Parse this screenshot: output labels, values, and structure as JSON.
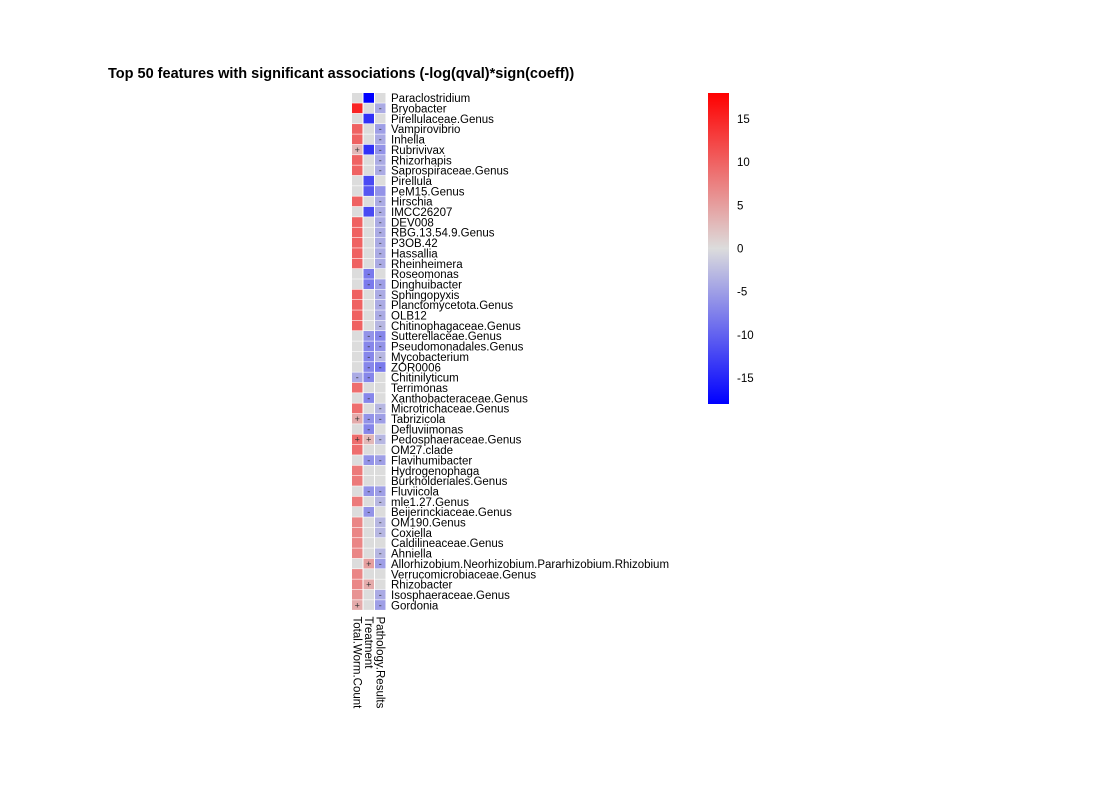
{
  "chart_data": {
    "type": "heatmap",
    "title": "Top 50 features with significant associations (-log(qval)*sign(coeff))",
    "columns": [
      "Total.Worm.Count",
      "Treatment",
      "Pathology.Results"
    ],
    "rows": [
      {
        "feature": "Paraclostridium",
        "values": [
          null,
          -18,
          null
        ],
        "signs": [
          "",
          "",
          ""
        ]
      },
      {
        "feature": "Bryobacter",
        "values": [
          15,
          null,
          -4
        ],
        "signs": [
          "",
          "",
          "-"
        ]
      },
      {
        "feature": "Pirellulaceae.Genus",
        "values": [
          null,
          -14,
          null
        ],
        "signs": [
          "",
          "",
          ""
        ]
      },
      {
        "feature": "Vampirovibrio",
        "values": [
          10,
          null,
          -5
        ],
        "signs": [
          "",
          "",
          "-"
        ]
      },
      {
        "feature": "Inhella",
        "values": [
          10,
          null,
          -4
        ],
        "signs": [
          "",
          "",
          "-"
        ]
      },
      {
        "feature": "Rubrivivax",
        "values": [
          3,
          -14,
          -6
        ],
        "signs": [
          "+",
          "",
          "-"
        ]
      },
      {
        "feature": "Rhizorhapis",
        "values": [
          10,
          null,
          -4
        ],
        "signs": [
          "",
          "",
          "-"
        ]
      },
      {
        "feature": "Saprospiraceae.Genus",
        "values": [
          10,
          null,
          -4
        ],
        "signs": [
          "",
          "",
          "-"
        ]
      },
      {
        "feature": "Pirellula",
        "values": [
          null,
          -12,
          null
        ],
        "signs": [
          "",
          "",
          ""
        ]
      },
      {
        "feature": "PeM15.Genus",
        "values": [
          null,
          -11,
          -6
        ],
        "signs": [
          "",
          "",
          ""
        ]
      },
      {
        "feature": "Hirschia",
        "values": [
          10,
          null,
          -4
        ],
        "signs": [
          "",
          "",
          "-"
        ]
      },
      {
        "feature": "IMCC26207",
        "values": [
          null,
          -12,
          -4
        ],
        "signs": [
          "",
          "",
          "-"
        ]
      },
      {
        "feature": "DEV008",
        "values": [
          10,
          null,
          -4
        ],
        "signs": [
          "",
          "",
          "-"
        ]
      },
      {
        "feature": "RBG.13.54.9.Genus",
        "values": [
          10,
          null,
          -4
        ],
        "signs": [
          "",
          "",
          "-"
        ]
      },
      {
        "feature": "P3OB.42",
        "values": [
          10,
          null,
          -4
        ],
        "signs": [
          "",
          "",
          "-"
        ]
      },
      {
        "feature": "Hassallia",
        "values": [
          10,
          null,
          -4
        ],
        "signs": [
          "",
          "",
          "-"
        ]
      },
      {
        "feature": "Rheinheimera",
        "values": [
          10,
          null,
          -4
        ],
        "signs": [
          "",
          "",
          "-"
        ]
      },
      {
        "feature": "Roseomonas",
        "values": [
          null,
          -8,
          null
        ],
        "signs": [
          "",
          "-",
          ""
        ]
      },
      {
        "feature": "Dinghuibacter",
        "values": [
          null,
          -8,
          -5
        ],
        "signs": [
          "",
          "-",
          "-"
        ]
      },
      {
        "feature": "Sphingopyxis",
        "values": [
          10,
          null,
          -4
        ],
        "signs": [
          "",
          "",
          "-"
        ]
      },
      {
        "feature": "Planctomycetota.Genus",
        "values": [
          10,
          null,
          -4
        ],
        "signs": [
          "",
          "",
          "-"
        ]
      },
      {
        "feature": "OLB12",
        "values": [
          10,
          null,
          -4
        ],
        "signs": [
          "",
          "",
          "-"
        ]
      },
      {
        "feature": "Chitinophagaceae.Genus",
        "values": [
          10,
          null,
          -3
        ],
        "signs": [
          "",
          "",
          "-"
        ]
      },
      {
        "feature": "Sutterellaceae.Genus",
        "values": [
          null,
          -6,
          -7
        ],
        "signs": [
          "",
          "-",
          "-"
        ]
      },
      {
        "feature": "Pseudomonadales.Genus",
        "values": [
          null,
          -7,
          -6
        ],
        "signs": [
          "",
          "-",
          "-"
        ]
      },
      {
        "feature": "Mycobacterium",
        "values": [
          null,
          -7,
          -3
        ],
        "signs": [
          "",
          "-",
          "-"
        ]
      },
      {
        "feature": "ZOR0006",
        "values": [
          null,
          -7,
          -8
        ],
        "signs": [
          "",
          "-",
          "-"
        ]
      },
      {
        "feature": "Chitinilyticum",
        "values": [
          -4,
          -7,
          null
        ],
        "signs": [
          "-",
          "-",
          ""
        ]
      },
      {
        "feature": "Terrimonas",
        "values": [
          9,
          null,
          null
        ],
        "signs": [
          "",
          "",
          ""
        ]
      },
      {
        "feature": "Xanthobacteraceae.Genus",
        "values": [
          null,
          -7,
          null
        ],
        "signs": [
          "",
          "-",
          ""
        ]
      },
      {
        "feature": "Microtrichaceae.Genus",
        "values": [
          9,
          null,
          -3
        ],
        "signs": [
          "",
          "",
          "-"
        ]
      },
      {
        "feature": "Tabrizicola",
        "values": [
          4,
          -6,
          -5
        ],
        "signs": [
          "+",
          "-",
          "-"
        ]
      },
      {
        "feature": "Defluviimonas",
        "values": [
          null,
          -7,
          null
        ],
        "signs": [
          "",
          "-",
          ""
        ]
      },
      {
        "feature": "Pedosphaeraceae.Genus",
        "values": [
          9,
          3,
          -3
        ],
        "signs": [
          "+",
          "+",
          "-"
        ]
      },
      {
        "feature": "OM27.clade",
        "values": [
          9,
          null,
          null
        ],
        "signs": [
          "",
          "",
          ""
        ]
      },
      {
        "feature": "Flavihumibacter",
        "values": [
          null,
          -6,
          -5
        ],
        "signs": [
          "",
          "-",
          "-"
        ]
      },
      {
        "feature": "Hydrogenophaga",
        "values": [
          8,
          null,
          null
        ],
        "signs": [
          "",
          "",
          ""
        ]
      },
      {
        "feature": "Burkholderiales.Genus",
        "values": [
          8,
          null,
          null
        ],
        "signs": [
          "",
          "",
          ""
        ]
      },
      {
        "feature": "Fluviicola",
        "values": [
          null,
          -6,
          -5
        ],
        "signs": [
          "",
          "-",
          "-"
        ]
      },
      {
        "feature": "mle1.27.Genus",
        "values": [
          8,
          null,
          -3
        ],
        "signs": [
          "",
          "",
          "-"
        ]
      },
      {
        "feature": "Beijerinckiaceae.Genus",
        "values": [
          null,
          -6,
          null
        ],
        "signs": [
          "",
          "-",
          ""
        ]
      },
      {
        "feature": "OM190.Genus",
        "values": [
          7,
          null,
          -3
        ],
        "signs": [
          "",
          "",
          "-"
        ]
      },
      {
        "feature": "Coxiella",
        "values": [
          7,
          null,
          -3
        ],
        "signs": [
          "",
          "",
          "-"
        ]
      },
      {
        "feature": "Caldilineaceae.Genus",
        "values": [
          7,
          null,
          null
        ],
        "signs": [
          "",
          "",
          ""
        ]
      },
      {
        "feature": "Ahniella",
        "values": [
          7,
          null,
          -3
        ],
        "signs": [
          "",
          "",
          "-"
        ]
      },
      {
        "feature": "Allorhizobium.Neorhizobium.Pararhizobium.Rhizobium",
        "values": [
          null,
          5,
          -5
        ],
        "signs": [
          "",
          "+",
          "-"
        ]
      },
      {
        "feature": "Verrucomicrobiaceae.Genus",
        "values": [
          7,
          null,
          null
        ],
        "signs": [
          "",
          "",
          ""
        ]
      },
      {
        "feature": "Rhizobacter",
        "values": [
          7,
          4,
          null
        ],
        "signs": [
          "",
          "+",
          ""
        ]
      },
      {
        "feature": "Isosphaeraceae.Genus",
        "values": [
          6,
          null,
          -4
        ],
        "signs": [
          "",
          "",
          "-"
        ]
      },
      {
        "feature": "Gordonia",
        "values": [
          4,
          null,
          -5
        ],
        "signs": [
          "+",
          "",
          "-"
        ]
      }
    ],
    "color_range": [
      -18,
      18
    ],
    "color_low": "#0000ff",
    "color_mid": "#dcdcdc",
    "color_high": "#ff0000",
    "legend": {
      "position": "right",
      "ticks": [
        15,
        10,
        5,
        0,
        -5,
        -10,
        -15
      ]
    },
    "grid": false
  }
}
